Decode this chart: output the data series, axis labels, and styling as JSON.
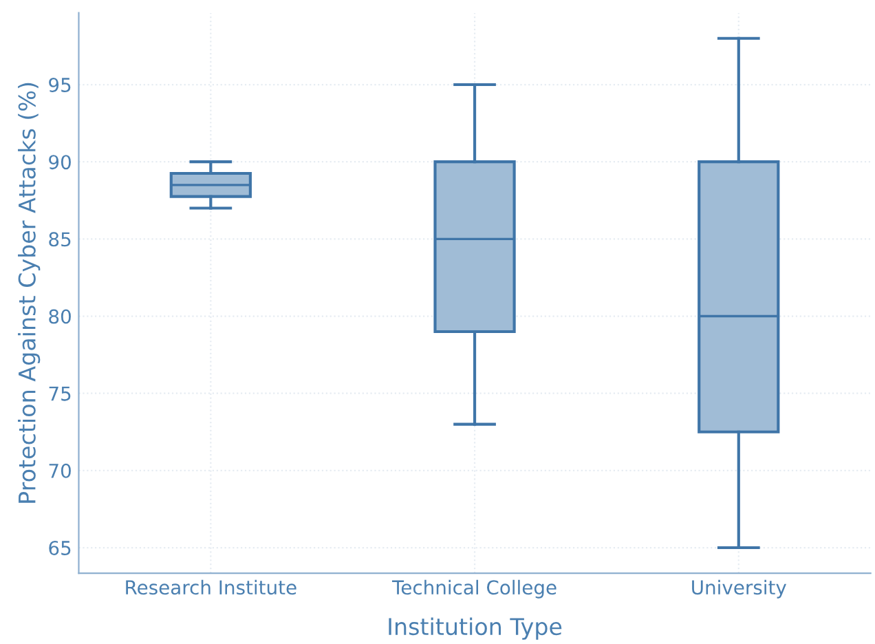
{
  "chart_data": {
    "type": "box",
    "xlabel": "Institution Type",
    "ylabel": "Protection Against Cyber Attacks (%)",
    "categories": [
      "Research Institute",
      "Technical College",
      "University"
    ],
    "boxes": [
      {
        "low": 87,
        "q1": 87.75,
        "median": 88.5,
        "q3": 89.25,
        "high": 90
      },
      {
        "low": 73,
        "q1": 79,
        "median": 85,
        "q3": 90,
        "high": 95
      },
      {
        "low": 65,
        "q1": 72.5,
        "median": 80,
        "q3": 90,
        "high": 98
      }
    ],
    "color": "#a0bcd6",
    "ylim": [
      63.35,
      99.65
    ],
    "yticks": [
      65,
      70,
      75,
      80,
      85,
      90,
      95
    ],
    "grid": true
  }
}
